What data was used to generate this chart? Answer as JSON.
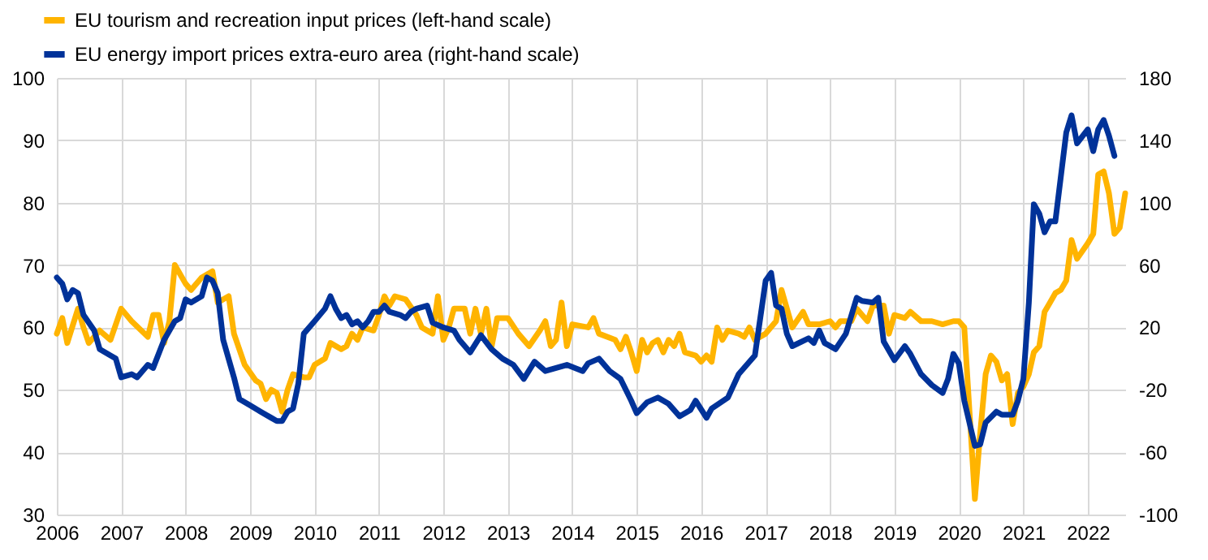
{
  "chart_data": {
    "type": "line",
    "xlim": [
      "2006-01",
      "2022-08"
    ],
    "xticks": [
      "2006",
      "2007",
      "2008",
      "2009",
      "2010",
      "2011",
      "2012",
      "2013",
      "2014",
      "2015",
      "2016",
      "2017",
      "2018",
      "2019",
      "2020",
      "2021",
      "2022"
    ],
    "ylim": [
      30,
      100
    ],
    "yticks": [
      30,
      40,
      50,
      60,
      70,
      80,
      90,
      100
    ],
    "y2lim": [
      -100,
      180
    ],
    "y2ticks": [
      -100,
      -60,
      -20,
      20,
      60,
      100,
      140,
      180
    ],
    "grid": true,
    "legend": "top left",
    "line_style": "solid",
    "marker": "none",
    "series": [
      {
        "name": "EU tourism and recreation input prices (left-hand scale)",
        "color": "#ffb400",
        "axis": "y",
        "x": [
          "2006-01",
          "2006-02",
          "2006-03",
          "2006-05",
          "2006-06",
          "2006-07",
          "2006-09",
          "2006-11",
          "2007-01",
          "2007-03",
          "2007-06",
          "2007-07",
          "2007-08",
          "2007-09",
          "2007-10",
          "2007-11",
          "2008-01",
          "2008-02",
          "2008-04",
          "2008-06",
          "2008-07",
          "2008-09",
          "2008-10",
          "2008-12",
          "2009-02",
          "2009-03",
          "2009-04",
          "2009-05",
          "2009-06",
          "2009-07",
          "2009-08",
          "2009-09",
          "2009-11",
          "2009-12",
          "2010-01",
          "2010-03",
          "2010-04",
          "2010-06",
          "2010-07",
          "2010-08",
          "2010-09",
          "2010-10",
          "2010-12",
          "2011-01",
          "2011-02",
          "2011-03",
          "2011-04",
          "2011-06",
          "2011-08",
          "2011-09",
          "2011-11",
          "2011-12",
          "2012-01",
          "2012-02",
          "2012-03",
          "2012-05",
          "2012-06",
          "2012-07",
          "2012-08",
          "2012-09",
          "2012-10",
          "2012-11",
          "2013-01",
          "2013-03",
          "2013-05",
          "2013-07",
          "2013-08",
          "2013-09",
          "2013-10",
          "2013-11",
          "2013-12",
          "2014-01",
          "2014-04",
          "2014-05",
          "2014-06",
          "2014-09",
          "2014-10",
          "2014-11",
          "2014-12",
          "2015-01",
          "2015-02",
          "2015-03",
          "2015-04",
          "2015-05",
          "2015-06",
          "2015-07",
          "2015-08",
          "2015-09",
          "2015-10",
          "2015-12",
          "2016-01",
          "2016-02",
          "2016-03",
          "2016-04",
          "2016-05",
          "2016-06",
          "2016-08",
          "2016-09",
          "2016-10",
          "2016-11",
          "2017-01",
          "2017-03",
          "2017-04",
          "2017-06",
          "2017-08",
          "2017-09",
          "2017-11",
          "2018-01",
          "2018-02",
          "2018-03",
          "2018-05",
          "2018-06",
          "2018-08",
          "2018-09",
          "2018-11",
          "2018-12",
          "2019-01",
          "2019-03",
          "2019-04",
          "2019-06",
          "2019-08",
          "2019-10",
          "2019-12",
          "2020-01",
          "2020-02",
          "2020-04",
          "2020-05",
          "2020-06",
          "2020-07",
          "2020-08",
          "2020-09",
          "2020-10",
          "2020-11",
          "2020-12",
          "2021-01",
          "2021-02",
          "2021-03",
          "2021-04",
          "2021-05",
          "2021-06",
          "2021-07",
          "2021-08",
          "2021-09",
          "2021-10",
          "2021-11",
          "2022-01",
          "2022-02",
          "2022-03",
          "2022-04",
          "2022-05",
          "2022-06",
          "2022-07",
          "2022-08"
        ],
        "values": [
          59,
          61.5,
          57.5,
          63,
          60,
          57.5,
          59.5,
          58,
          63,
          61,
          58.5,
          62,
          62,
          57.5,
          61,
          70,
          67,
          66,
          68,
          69,
          64,
          65,
          59,
          54,
          51.5,
          51,
          48.5,
          50,
          49.5,
          46.5,
          50,
          52.5,
          52,
          52,
          54,
          55,
          57.5,
          56.5,
          57,
          59,
          58,
          60,
          59.5,
          62,
          65,
          63.5,
          65,
          64.5,
          62,
          60,
          59,
          65,
          58,
          60,
          63,
          63,
          59,
          63,
          59,
          63,
          57,
          61.5,
          61.5,
          59,
          57,
          59.5,
          61,
          57,
          58,
          64,
          57,
          60.5,
          60,
          61.5,
          59,
          58,
          56.5,
          58.5,
          56,
          53,
          58,
          56,
          57.5,
          58,
          56,
          58,
          57,
          59,
          56,
          55.5,
          54.5,
          55.5,
          54.5,
          60,
          58,
          59.5,
          59,
          58.5,
          60,
          58,
          59,
          61,
          66,
          60,
          62.5,
          60.5,
          60.5,
          61,
          60,
          61,
          61,
          63,
          61,
          63.5,
          63.5,
          59,
          62,
          61.5,
          62.5,
          61,
          61,
          60.5,
          61,
          61,
          60,
          32.5,
          43,
          52.5,
          55.5,
          54.5,
          51.5,
          52.5,
          44.5,
          49.5,
          50.5,
          52.5,
          56,
          57,
          62.5,
          64,
          65.5,
          66,
          67.5,
          74,
          71,
          73.5,
          75,
          84.5,
          85,
          81.5,
          75,
          76,
          81.5
        ]
      },
      {
        "name": "EU energy import prices extra-euro area (right-hand scale)",
        "color": "#003299",
        "axis": "y2",
        "x": [
          "2006-01",
          "2006-02",
          "2006-03",
          "2006-04",
          "2006-05",
          "2006-06",
          "2006-08",
          "2006-09",
          "2006-11",
          "2006-12",
          "2007-01",
          "2007-03",
          "2007-04",
          "2007-06",
          "2007-07",
          "2007-09",
          "2007-11",
          "2007-12",
          "2008-01",
          "2008-02",
          "2008-04",
          "2008-05",
          "2008-06",
          "2008-07",
          "2008-08",
          "2008-10",
          "2008-11",
          "2009-01",
          "2009-03",
          "2009-05",
          "2009-06",
          "2009-07",
          "2009-08",
          "2009-09",
          "2009-10",
          "2009-11",
          "2010-01",
          "2010-03",
          "2010-04",
          "2010-05",
          "2010-06",
          "2010-07",
          "2010-08",
          "2010-09",
          "2010-10",
          "2010-11",
          "2010-12",
          "2011-01",
          "2011-02",
          "2011-03",
          "2011-05",
          "2011-06",
          "2011-07",
          "2011-08",
          "2011-10",
          "2011-11",
          "2012-01",
          "2012-03",
          "2012-04",
          "2012-06",
          "2012-08",
          "2012-10",
          "2012-12",
          "2013-02",
          "2013-04",
          "2013-06",
          "2013-08",
          "2013-10",
          "2013-12",
          "2014-03",
          "2014-04",
          "2014-06",
          "2014-08",
          "2014-10",
          "2014-12",
          "2015-01",
          "2015-03",
          "2015-05",
          "2015-07",
          "2015-09",
          "2015-11",
          "2015-12",
          "2016-02",
          "2016-03",
          "2016-06",
          "2016-08",
          "2016-11",
          "2017-01",
          "2017-02",
          "2017-03",
          "2017-04",
          "2017-05",
          "2017-06",
          "2017-09",
          "2017-10",
          "2017-11",
          "2017-12",
          "2018-02",
          "2018-04",
          "2018-06",
          "2018-07",
          "2018-09",
          "2018-10",
          "2018-11",
          "2019-01",
          "2019-03",
          "2019-04",
          "2019-06",
          "2019-08",
          "2019-10",
          "2019-11",
          "2019-12",
          "2020-01",
          "2020-02",
          "2020-04",
          "2020-05",
          "2020-06",
          "2020-08",
          "2020-09",
          "2020-11",
          "2020-12",
          "2021-01",
          "2021-02",
          "2021-03",
          "2021-04",
          "2021-05",
          "2021-06",
          "2021-07",
          "2021-09",
          "2021-10",
          "2021-11",
          "2022-01",
          "2022-02",
          "2022-03",
          "2022-04",
          "2022-05",
          "2022-06"
        ],
        "values": [
          52,
          48,
          38,
          44,
          42,
          28,
          18,
          6,
          2,
          0,
          -12,
          -10,
          -12,
          -4,
          -6,
          12,
          24,
          26,
          38,
          36,
          40,
          52,
          50,
          42,
          12,
          -12,
          -26,
          -30,
          -34,
          -38,
          -40,
          -40,
          -34,
          -32,
          -16,
          16,
          24,
          32,
          40,
          32,
          26,
          28,
          22,
          24,
          20,
          24,
          30,
          30,
          34,
          30,
          28,
          26,
          30,
          32,
          34,
          23,
          20,
          18,
          12,
          4,
          15,
          6,
          0,
          -4,
          -13,
          -2,
          -8,
          -6,
          -4,
          -8,
          -3,
          0,
          -8,
          -13,
          -27,
          -35,
          -28,
          -25,
          -29,
          -37,
          -33,
          -27,
          -38,
          -32,
          -25,
          -10,
          2,
          50,
          55,
          34,
          32,
          16,
          8,
          13,
          10,
          18,
          10,
          6,
          16,
          39,
          37,
          36,
          39,
          11,
          -1,
          8,
          3,
          -10,
          -17,
          -22,
          -13,
          3,
          -3,
          -27,
          -56,
          -55,
          -41,
          -34,
          -36,
          -36,
          -27,
          -13,
          36,
          99,
          93,
          81,
          88,
          88,
          145,
          156,
          138,
          147,
          133,
          147,
          153,
          143,
          130
        ]
      }
    ]
  }
}
